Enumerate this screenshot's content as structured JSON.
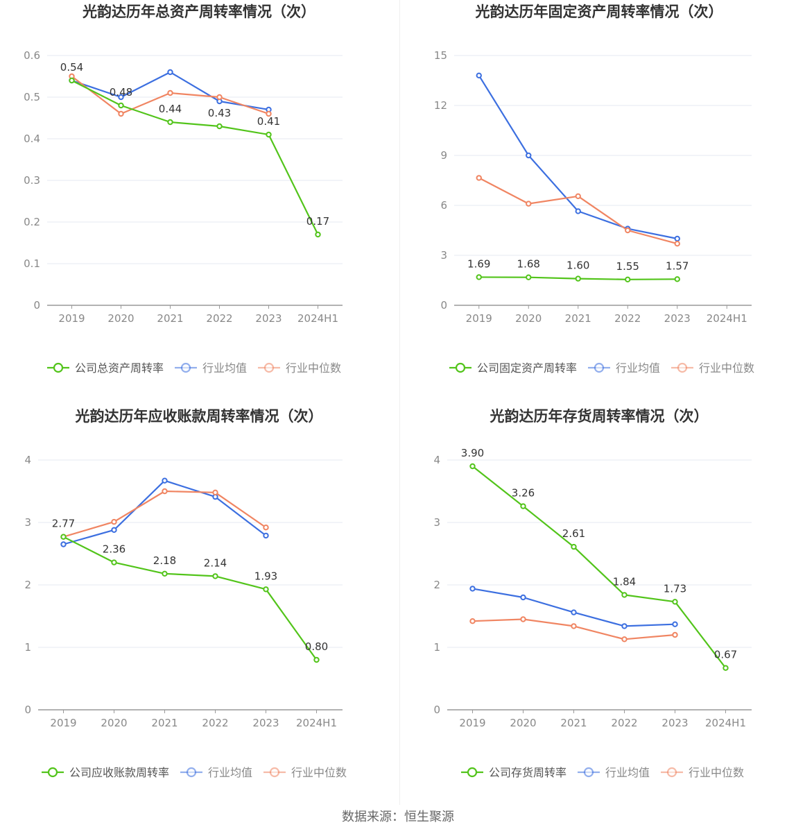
{
  "source_text": "数据来源：恒生聚源",
  "chart_data": [
    {
      "type": "line",
      "title": "光韵达历年总资产周转率情况（次）",
      "categories": [
        "2019",
        "2020",
        "2021",
        "2022",
        "2023",
        "2024H1"
      ],
      "yticks": [
        "0",
        "0.1",
        "0.2",
        "0.3",
        "0.4",
        "0.5",
        "0.6"
      ],
      "ylim": [
        0,
        0.6
      ],
      "series": [
        {
          "name": "公司总资产周转率",
          "color": "#52c41a",
          "values": [
            0.54,
            0.48,
            0.44,
            0.43,
            0.41,
            0.17
          ],
          "labels": [
            "0.54",
            "0.48",
            "0.44",
            "0.43",
            "0.41",
            "0.17"
          ]
        },
        {
          "name": "行业均值",
          "color": "#3c6fe0",
          "values": [
            0.54,
            0.5,
            0.56,
            0.49,
            0.47,
            null
          ]
        },
        {
          "name": "行业中位数",
          "color": "#f08562",
          "values": [
            0.55,
            0.46,
            0.51,
            0.5,
            0.46,
            null
          ]
        }
      ]
    },
    {
      "type": "line",
      "title": "光韵达历年固定资产周转率情况（次）",
      "categories": [
        "2019",
        "2020",
        "2021",
        "2022",
        "2023",
        "2024H1"
      ],
      "yticks": [
        "0",
        "3",
        "6",
        "9",
        "12",
        "15"
      ],
      "ylim": [
        0,
        15
      ],
      "series": [
        {
          "name": "公司固定资产周转率",
          "color": "#52c41a",
          "values": [
            1.69,
            1.68,
            1.6,
            1.55,
            1.57,
            null
          ],
          "labels": [
            "1.69",
            "1.68",
            "1.60",
            "1.55",
            "1.57",
            null
          ]
        },
        {
          "name": "行业均值",
          "color": "#3c6fe0",
          "values": [
            13.8,
            9.0,
            5.65,
            4.6,
            4.0,
            null
          ]
        },
        {
          "name": "行业中位数",
          "color": "#f08562",
          "values": [
            7.65,
            6.1,
            6.55,
            4.5,
            3.7,
            null
          ]
        }
      ]
    },
    {
      "type": "line",
      "title": "光韵达历年应收账款周转率情况（次）",
      "categories": [
        "2019",
        "2020",
        "2021",
        "2022",
        "2023",
        "2024H1"
      ],
      "yticks": [
        "0",
        "1",
        "2",
        "3",
        "4"
      ],
      "ylim": [
        0,
        4
      ],
      "series": [
        {
          "name": "公司应收账款周转率",
          "color": "#52c41a",
          "values": [
            2.77,
            2.36,
            2.18,
            2.14,
            1.93,
            0.8
          ],
          "labels": [
            "2.77",
            "2.36",
            "2.18",
            "2.14",
            "1.93",
            "0.80"
          ]
        },
        {
          "name": "行业均值",
          "color": "#3c6fe0",
          "values": [
            2.65,
            2.88,
            3.67,
            3.41,
            2.79,
            null
          ]
        },
        {
          "name": "行业中位数",
          "color": "#f08562",
          "values": [
            2.77,
            3.01,
            3.5,
            3.48,
            2.92,
            null
          ]
        }
      ]
    },
    {
      "type": "line",
      "title": "光韵达历年存货周转率情况（次）",
      "categories": [
        "2019",
        "2020",
        "2021",
        "2022",
        "2023",
        "2024H1"
      ],
      "yticks": [
        "0",
        "1",
        "2",
        "3",
        "4"
      ],
      "ylim": [
        0,
        4
      ],
      "series": [
        {
          "name": "公司存货周转率",
          "color": "#52c41a",
          "values": [
            3.9,
            3.26,
            2.61,
            1.84,
            1.73,
            0.67
          ],
          "labels": [
            "3.90",
            "3.26",
            "2.61",
            "1.84",
            "1.73",
            "0.67"
          ]
        },
        {
          "name": "行业均值",
          "color": "#3c6fe0",
          "values": [
            1.94,
            1.8,
            1.56,
            1.34,
            1.37,
            null
          ]
        },
        {
          "name": "行业中位数",
          "color": "#f08562",
          "values": [
            1.42,
            1.45,
            1.34,
            1.13,
            1.2,
            null
          ]
        }
      ]
    }
  ]
}
